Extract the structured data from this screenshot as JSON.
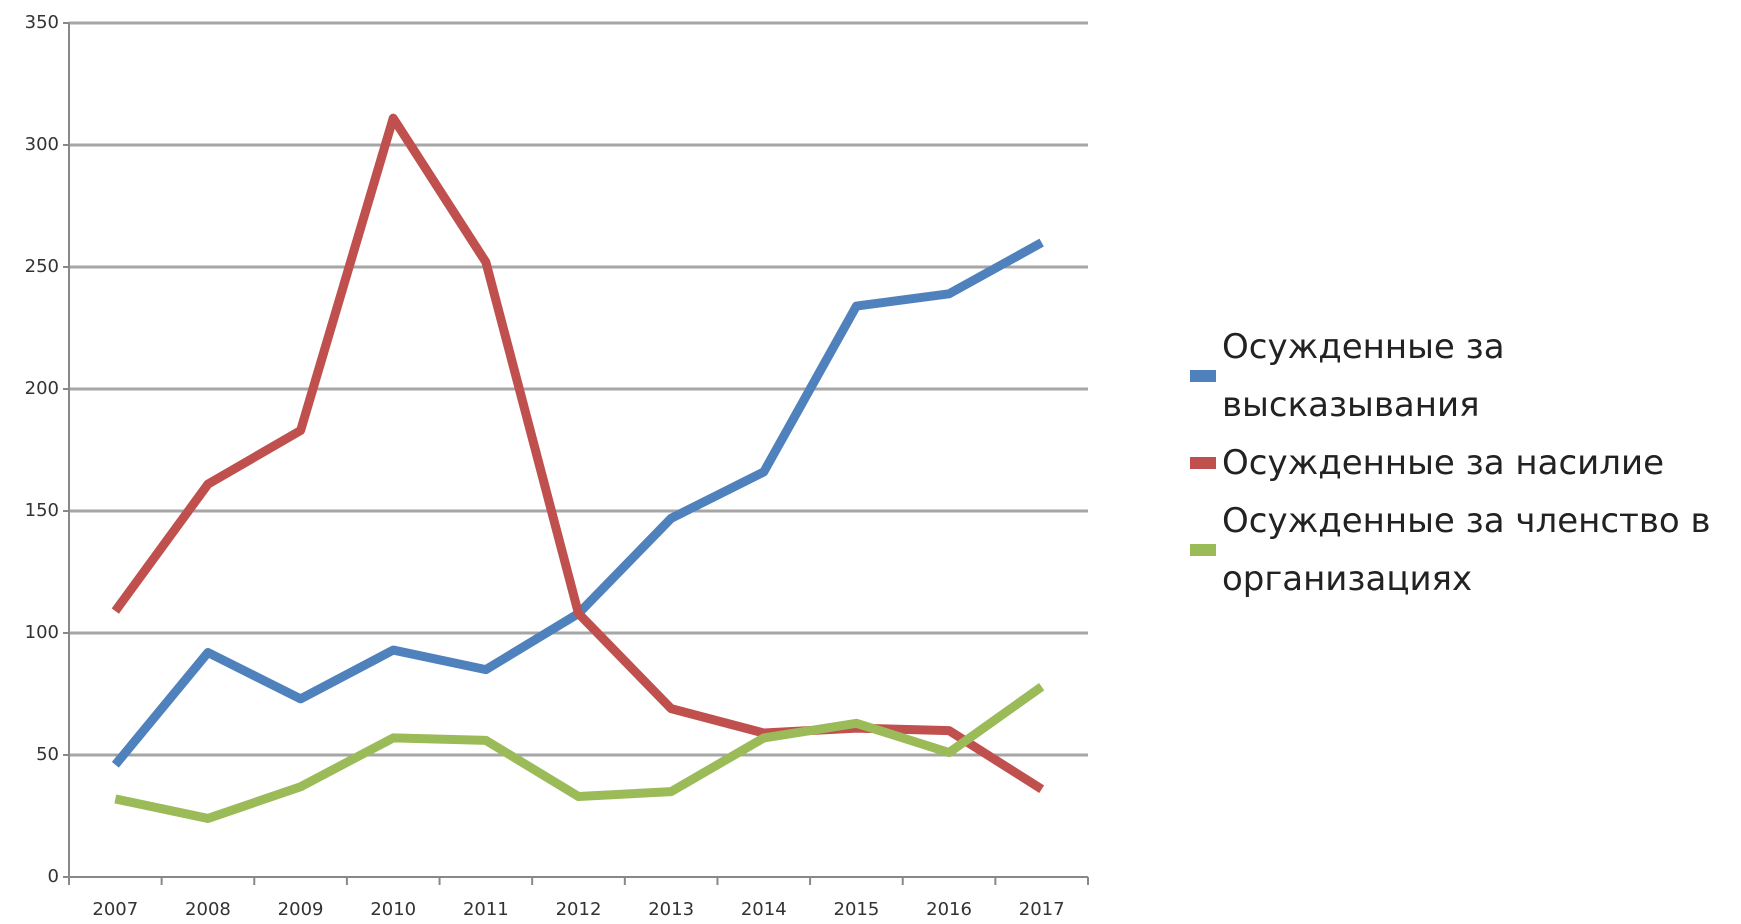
{
  "chart_data": {
    "type": "line",
    "categories": [
      "2007",
      "2008",
      "2009",
      "2010",
      "2011",
      "2012",
      "2013",
      "2014",
      "2015",
      "2016",
      "2017"
    ],
    "series": [
      {
        "name": "Осужденные за высказывания",
        "color": "#4f81bd",
        "values": [
          46,
          92,
          73,
          93,
          85,
          108,
          147,
          166,
          234,
          239,
          260
        ]
      },
      {
        "name": "Осужденные за насилие",
        "color": "#c0504d",
        "values": [
          109,
          161,
          183,
          311,
          252,
          108,
          69,
          59,
          61,
          60,
          36
        ]
      },
      {
        "name": "Осужденные за членство в организациях",
        "color": "#9bbb59",
        "values": [
          32,
          24,
          37,
          57,
          56,
          33,
          35,
          57,
          63,
          51,
          78
        ]
      }
    ],
    "ylim": [
      0,
      350
    ],
    "yticks": [
      0,
      50,
      100,
      150,
      200,
      250,
      300,
      350
    ],
    "grid": true,
    "legend": "right"
  }
}
